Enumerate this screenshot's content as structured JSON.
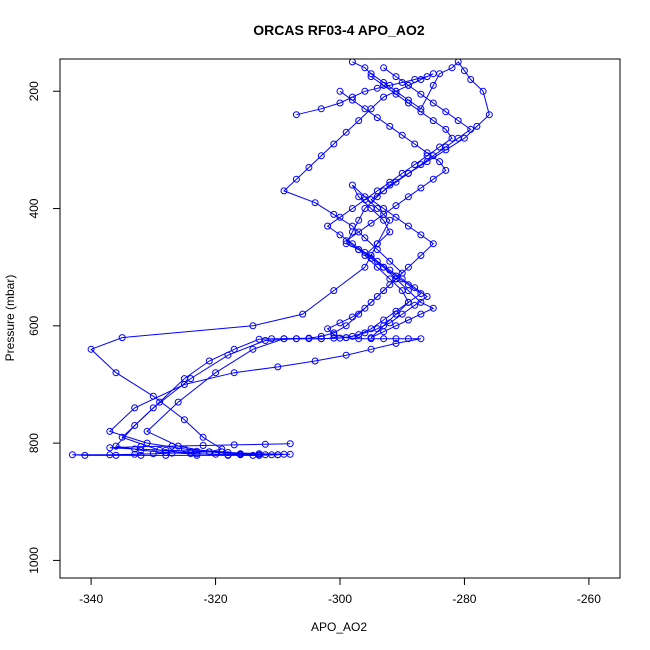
{
  "chart_data": {
    "type": "line",
    "title": "ORCAS RF03-4 APO_AO2",
    "xlabel": "APO_AO2",
    "ylabel": "Pressure (mbar)",
    "xlim": [
      -345,
      -255
    ],
    "ylim": [
      1030,
      145
    ],
    "x_ticks": [
      -340,
      -320,
      -300,
      -280,
      -260
    ],
    "y_ticks": [
      200,
      400,
      600,
      800,
      1000
    ],
    "grid": false,
    "line_color": "#0000ff",
    "marker": "open-circle",
    "series": [
      {
        "x": [
          -298,
          -296,
          -295,
          -293,
          -291,
          -289,
          -287,
          -285,
          -284,
          -282,
          -281,
          -280,
          -279,
          -277,
          -276,
          -278,
          -280,
          -283,
          -286,
          -289,
          -292,
          -294,
          -296,
          -297,
          -298,
          -299,
          -297,
          -295,
          -293,
          -291,
          -289,
          -287,
          -285,
          -287,
          -289,
          -291,
          -293,
          -295,
          -293,
          -291,
          -289,
          -290,
          -292,
          -294,
          -296,
          -294,
          -292,
          -293,
          -295,
          -297,
          -298,
          -296,
          -294,
          -292,
          -294,
          -296,
          -301,
          -306,
          -314,
          -335,
          -340,
          -336,
          -330,
          -325,
          -322,
          -319,
          -321,
          -324,
          -327,
          -330,
          -333,
          -337,
          -343,
          -341,
          -336,
          -332,
          -328,
          -323,
          -318,
          -314,
          -310,
          -309,
          -313,
          -318,
          -323,
          -328,
          -333,
          -337,
          -332,
          -327,
          -322,
          -317,
          -312,
          -308
        ],
        "y": [
          150,
          160,
          170,
          185,
          200,
          215,
          230,
          190,
          170,
          160,
          150,
          165,
          180,
          200,
          240,
          260,
          280,
          300,
          320,
          340,
          360,
          380,
          400,
          420,
          440,
          460,
          470,
          480,
          500,
          520,
          540,
          560,
          570,
          580,
          590,
          600,
          610,
          620,
          600,
          580,
          560,
          540,
          520,
          500,
          480,
          460,
          440,
          420,
          400,
          380,
          360,
          380,
          400,
          420,
          460,
          500,
          540,
          580,
          600,
          620,
          640,
          680,
          720,
          760,
          790,
          810,
          815,
          816,
          817,
          818,
          819,
          820,
          820,
          821,
          821,
          821,
          821,
          821,
          821,
          821,
          820,
          819,
          818,
          816,
          814,
          812,
          810,
          808,
          806,
          805,
          804,
          803,
          802,
          801
        ]
      },
      {
        "x": [
          -307,
          -303,
          -300,
          -298,
          -296,
          -294,
          -292,
          -290,
          -288,
          -286,
          -285,
          -287,
          -289,
          -291,
          -293,
          -295,
          -297,
          -299,
          -301,
          -303,
          -305,
          -307,
          -309,
          -304,
          -301,
          -298,
          -296,
          -294,
          -292,
          -290,
          -292,
          -294,
          -296,
          -298,
          -300,
          -302,
          -301,
          -299,
          -297,
          -295,
          -293,
          -291,
          -289,
          -287,
          -291,
          -295,
          -299,
          -304,
          -310,
          -317,
          -325,
          -333,
          -337,
          -331,
          -325,
          -319,
          -316,
          -313,
          -310
        ],
        "y": [
          240,
          230,
          220,
          210,
          200,
          195,
          190,
          185,
          180,
          175,
          170,
          180,
          190,
          200,
          210,
          230,
          250,
          270,
          290,
          310,
          330,
          350,
          370,
          390,
          410,
          430,
          450,
          470,
          490,
          510,
          530,
          550,
          570,
          585,
          595,
          605,
          615,
          620,
          622,
          622,
          622,
          622,
          622,
          622,
          630,
          640,
          650,
          660,
          670,
          680,
          700,
          740,
          780,
          800,
          810,
          815,
          818,
          819,
          820
        ]
      },
      {
        "x": [
          -300,
          -298,
          -296,
          -294,
          -292,
          -290,
          -288,
          -286,
          -284,
          -283,
          -285,
          -287,
          -289,
          -291,
          -293,
          -295,
          -297,
          -299,
          -297,
          -295,
          -293,
          -291,
          -289,
          -287,
          -289,
          -291,
          -293,
          -295,
          -297,
          -299,
          -301,
          -303,
          -305,
          -307,
          -309,
          -311,
          -313,
          -317,
          -321,
          -325,
          -329,
          -333,
          -336,
          -332,
          -328,
          -324,
          -320,
          -316,
          -312,
          -308
        ],
        "y": [
          200,
          215,
          230,
          245,
          260,
          275,
          290,
          305,
          320,
          335,
          350,
          365,
          380,
          395,
          410,
          425,
          440,
          455,
          470,
          485,
          500,
          515,
          530,
          545,
          560,
          575,
          590,
          605,
          615,
          620,
          621,
          622,
          622,
          622,
          622,
          622,
          623,
          640,
          660,
          690,
          730,
          770,
          805,
          812,
          816,
          818,
          819,
          820,
          820,
          819
        ]
      },
      {
        "x": [
          -295,
          -293,
          -291,
          -289,
          -287,
          -285,
          -283,
          -282,
          -284,
          -286,
          -288,
          -290,
          -292,
          -294,
          -296,
          -298,
          -300,
          -302,
          -300,
          -298,
          -296,
          -294,
          -292,
          -290,
          -288,
          -286,
          -288,
          -290,
          -292,
          -294,
          -296,
          -298,
          -300,
          -303,
          -307,
          -312,
          -318,
          -324,
          -330,
          -335,
          -329,
          -323,
          -318,
          -313
        ],
        "y": [
          175,
          190,
          205,
          220,
          235,
          250,
          265,
          280,
          295,
          310,
          325,
          340,
          355,
          370,
          385,
          400,
          415,
          430,
          445,
          460,
          475,
          490,
          505,
          520,
          535,
          550,
          565,
          580,
          595,
          605,
          612,
          618,
          621,
          622,
          622,
          625,
          650,
          690,
          740,
          790,
          812,
          818,
          820,
          821
        ]
      },
      {
        "x": [
          -293,
          -291,
          -289,
          -287,
          -285,
          -283,
          -281,
          -279,
          -281,
          -283,
          -285,
          -287,
          -289,
          -291,
          -293,
          -295,
          -293,
          -291,
          -289,
          -287,
          -285,
          -287,
          -289,
          -291,
          -293,
          -295,
          -297,
          -299,
          -301,
          -303,
          -305,
          -309,
          -314,
          -320,
          -326,
          -331,
          -326,
          -321,
          -316,
          -311
        ],
        "y": [
          160,
          175,
          190,
          205,
          220,
          235,
          250,
          265,
          280,
          295,
          310,
          325,
          340,
          355,
          370,
          385,
          400,
          415,
          430,
          445,
          460,
          480,
          500,
          520,
          540,
          560,
          580,
          600,
          612,
          618,
          621,
          622,
          640,
          680,
          730,
          780,
          805,
          815,
          819,
          820
        ]
      }
    ]
  }
}
